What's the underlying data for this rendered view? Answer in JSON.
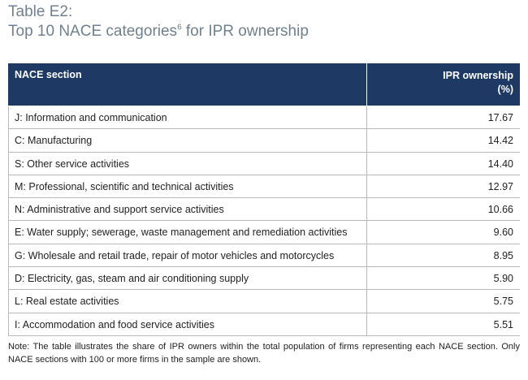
{
  "title": {
    "label": "Table E2:",
    "text": "Top 10 NACE categories",
    "footnote_marker": "6",
    "text_end": " for IPR ownership"
  },
  "table": {
    "header": [
      "NACE section",
      "IPR ownership",
      "(%)"
    ],
    "rows": [
      [
        "J: Information and communication",
        "17.67"
      ],
      [
        "C: Manufacturing",
        "14.42"
      ],
      [
        "S: Other service activities",
        "14.40"
      ],
      [
        "M: Professional, scientific and technical activities",
        "12.97"
      ],
      [
        "N: Administrative and support service activities",
        "10.66"
      ],
      [
        "E: Water supply; sewerage, waste management and remediation activities",
        "9.60"
      ],
      [
        "G: Wholesale and retail trade, repair of motor vehicles and motorcycles",
        "8.95"
      ],
      [
        "D: Electricity, gas, steam and air conditioning supply",
        "5.90"
      ],
      [
        "L: Real estate activities",
        "5.75"
      ],
      [
        "I: Accommodation and food service activities",
        "5.51"
      ]
    ]
  },
  "note": "Note: The table illustrates the share of IPR owners within the total population of firms representing each NACE section. Only NACE sections with 100 or more firms in the sample are shown."
}
